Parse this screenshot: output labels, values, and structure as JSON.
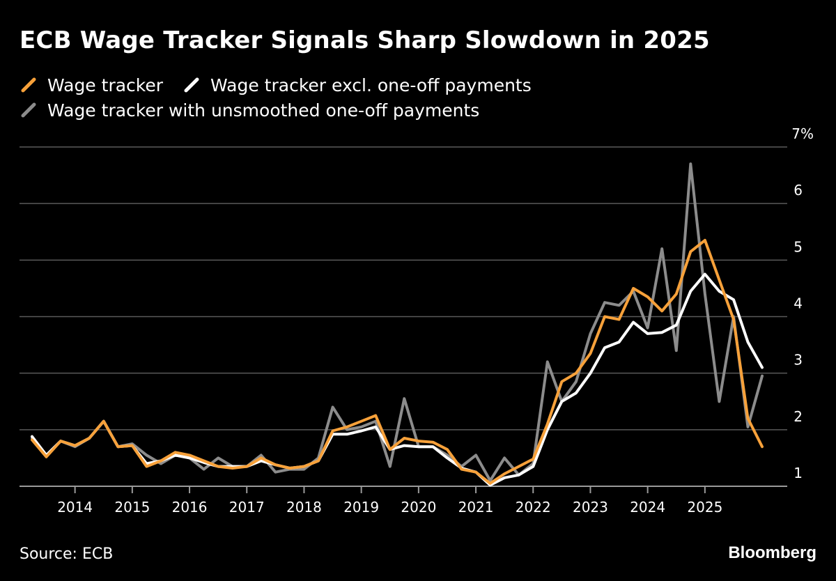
{
  "title": "ECB Wage Tracker Signals Sharp Slowdown in 2025",
  "source": "Source: ECB",
  "brand": "Bloomberg",
  "legend": [
    {
      "label": "Wage tracker",
      "color": "#f7a13a"
    },
    {
      "label": "Wage tracker excl. one-off payments",
      "color": "#ffffff"
    },
    {
      "label": "Wage tracker with unsmoothed one-off payments",
      "color": "#8c8c8c"
    }
  ],
  "chart_data": {
    "type": "line",
    "x_start": 2013.25,
    "x_step": 0.25,
    "x_ticks": [
      "2014",
      "2015",
      "2016",
      "2017",
      "2018",
      "2019",
      "2020",
      "2021",
      "2022",
      "2023",
      "2024",
      "2025"
    ],
    "y_ticks": [
      "1",
      "2",
      "3",
      "4",
      "5",
      "6",
      "7%"
    ],
    "ylim": [
      1,
      7
    ],
    "grid": true,
    "series": [
      {
        "name": "Wage tracker with unsmoothed one-off payments",
        "color": "#8c8c8c",
        "values": [
          1.85,
          1.55,
          1.8,
          1.7,
          1.85,
          2.15,
          1.7,
          1.75,
          1.55,
          1.4,
          1.55,
          1.5,
          1.3,
          1.5,
          1.35,
          1.35,
          1.55,
          1.25,
          1.3,
          1.3,
          1.5,
          2.4,
          2.0,
          2.05,
          2.15,
          1.35,
          2.55,
          1.7,
          1.7,
          1.55,
          1.35,
          1.55,
          1.1,
          1.5,
          1.2,
          1.4,
          3.2,
          2.5,
          2.85,
          3.7,
          4.25,
          4.2,
          4.45,
          3.8,
          5.2,
          3.4,
          6.7,
          4.4,
          2.5,
          4.0,
          2.05,
          2.95
        ]
      },
      {
        "name": "Wage tracker excl. one-off payments",
        "color": "#ffffff",
        "values": [
          1.88,
          1.55,
          1.8,
          1.72,
          1.85,
          2.15,
          1.7,
          1.72,
          1.4,
          1.45,
          1.55,
          1.5,
          1.42,
          1.35,
          1.35,
          1.35,
          1.45,
          1.38,
          1.32,
          1.35,
          1.45,
          1.92,
          1.92,
          1.98,
          2.05,
          1.65,
          1.72,
          1.7,
          1.7,
          1.5,
          1.32,
          1.25,
          1.02,
          1.15,
          1.2,
          1.35,
          2.0,
          2.5,
          2.65,
          3.0,
          3.45,
          3.55,
          3.9,
          3.7,
          3.72,
          3.85,
          4.45,
          4.75,
          4.45,
          4.3,
          3.55,
          3.1
        ]
      },
      {
        "name": "Wage tracker",
        "color": "#f7a13a",
        "values": [
          1.82,
          1.52,
          1.8,
          1.72,
          1.85,
          2.15,
          1.7,
          1.72,
          1.35,
          1.45,
          1.6,
          1.55,
          1.45,
          1.35,
          1.32,
          1.35,
          1.5,
          1.38,
          1.32,
          1.35,
          1.45,
          1.98,
          2.05,
          2.15,
          2.25,
          1.65,
          1.85,
          1.8,
          1.78,
          1.65,
          1.3,
          1.25,
          1.05,
          1.22,
          1.35,
          1.48,
          2.1,
          2.85,
          3.0,
          3.35,
          4.0,
          3.95,
          4.5,
          4.35,
          4.1,
          4.4,
          5.15,
          5.35,
          4.65,
          3.95,
          2.2,
          1.7
        ]
      }
    ]
  }
}
